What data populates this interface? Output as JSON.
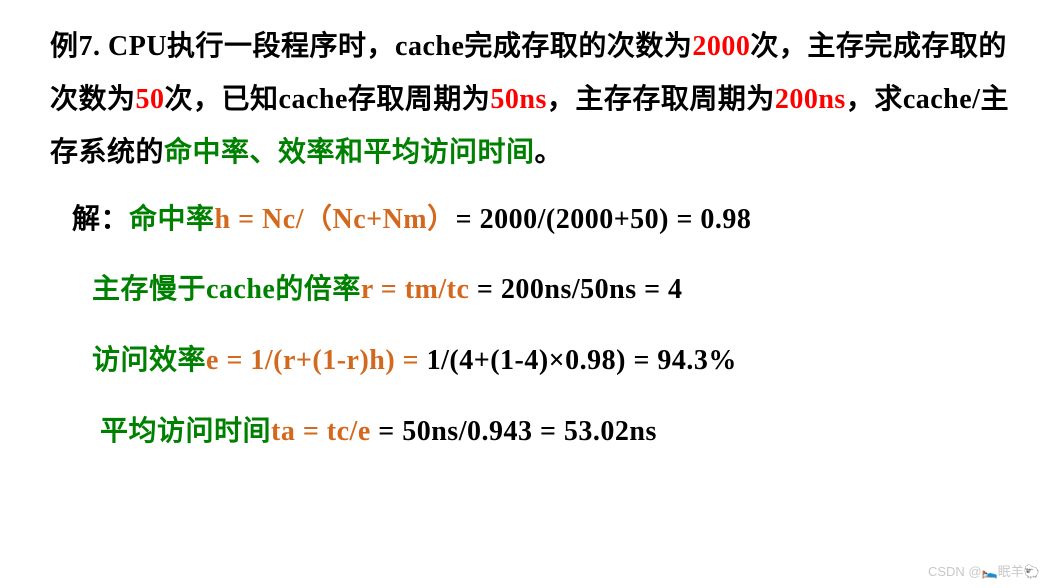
{
  "colors": {
    "black": "#000000",
    "red": "#ff0000",
    "green": "#008000",
    "orange": "#d2691e",
    "background": "#ffffff",
    "watermark": "#c8c8c8"
  },
  "typography": {
    "base_fontsize_pt": 21,
    "line_height": 1.9,
    "weight": "bold",
    "family": "SimSun / Songti"
  },
  "problem": {
    "p1a": "例7. CPU执行一段程序时，cache完成存取的次数为",
    "p1b": "2000",
    "p1c": "次，主存完成存取的次数为",
    "p1d": "50",
    "p1e": "次，已知cache存取周期为",
    "p1f": "50ns",
    "p1g": "，主存存取周期为",
    "p1h": "200ns",
    "p1i": "，求cache/主存系统的",
    "p1j": "命中率、效率和平均访问时间",
    "p1k": "。"
  },
  "solution": {
    "line1": {
      "a": "解：",
      "b": "命中率",
      "c": "h = Nc/（Nc+Nm）",
      "d": "= 2000/(2000+50) = 0.98"
    },
    "line2": {
      "a": "主存慢于cache的倍率",
      "b": "r = tm/tc",
      "c": " = 200ns/50ns = 4"
    },
    "line3": {
      "a": "访问效率",
      "b": "e = 1/(r+(1-r)h) = ",
      "c": "1/(4+(1-4)×0.98) = 94.3%"
    },
    "line4": {
      "a": "平均访问时间",
      "b": "ta = tc/e",
      "c": " = 50ns/0.943 = 53.02ns"
    }
  },
  "watermark": "CSDN @🛌眠羊🐑",
  "values": {
    "Nc": 2000,
    "Nm": 50,
    "tc_ns": 50,
    "tm_ns": 200,
    "h": 0.98,
    "r": 4,
    "e_percent": 94.3,
    "ta_ns": 53.02
  }
}
